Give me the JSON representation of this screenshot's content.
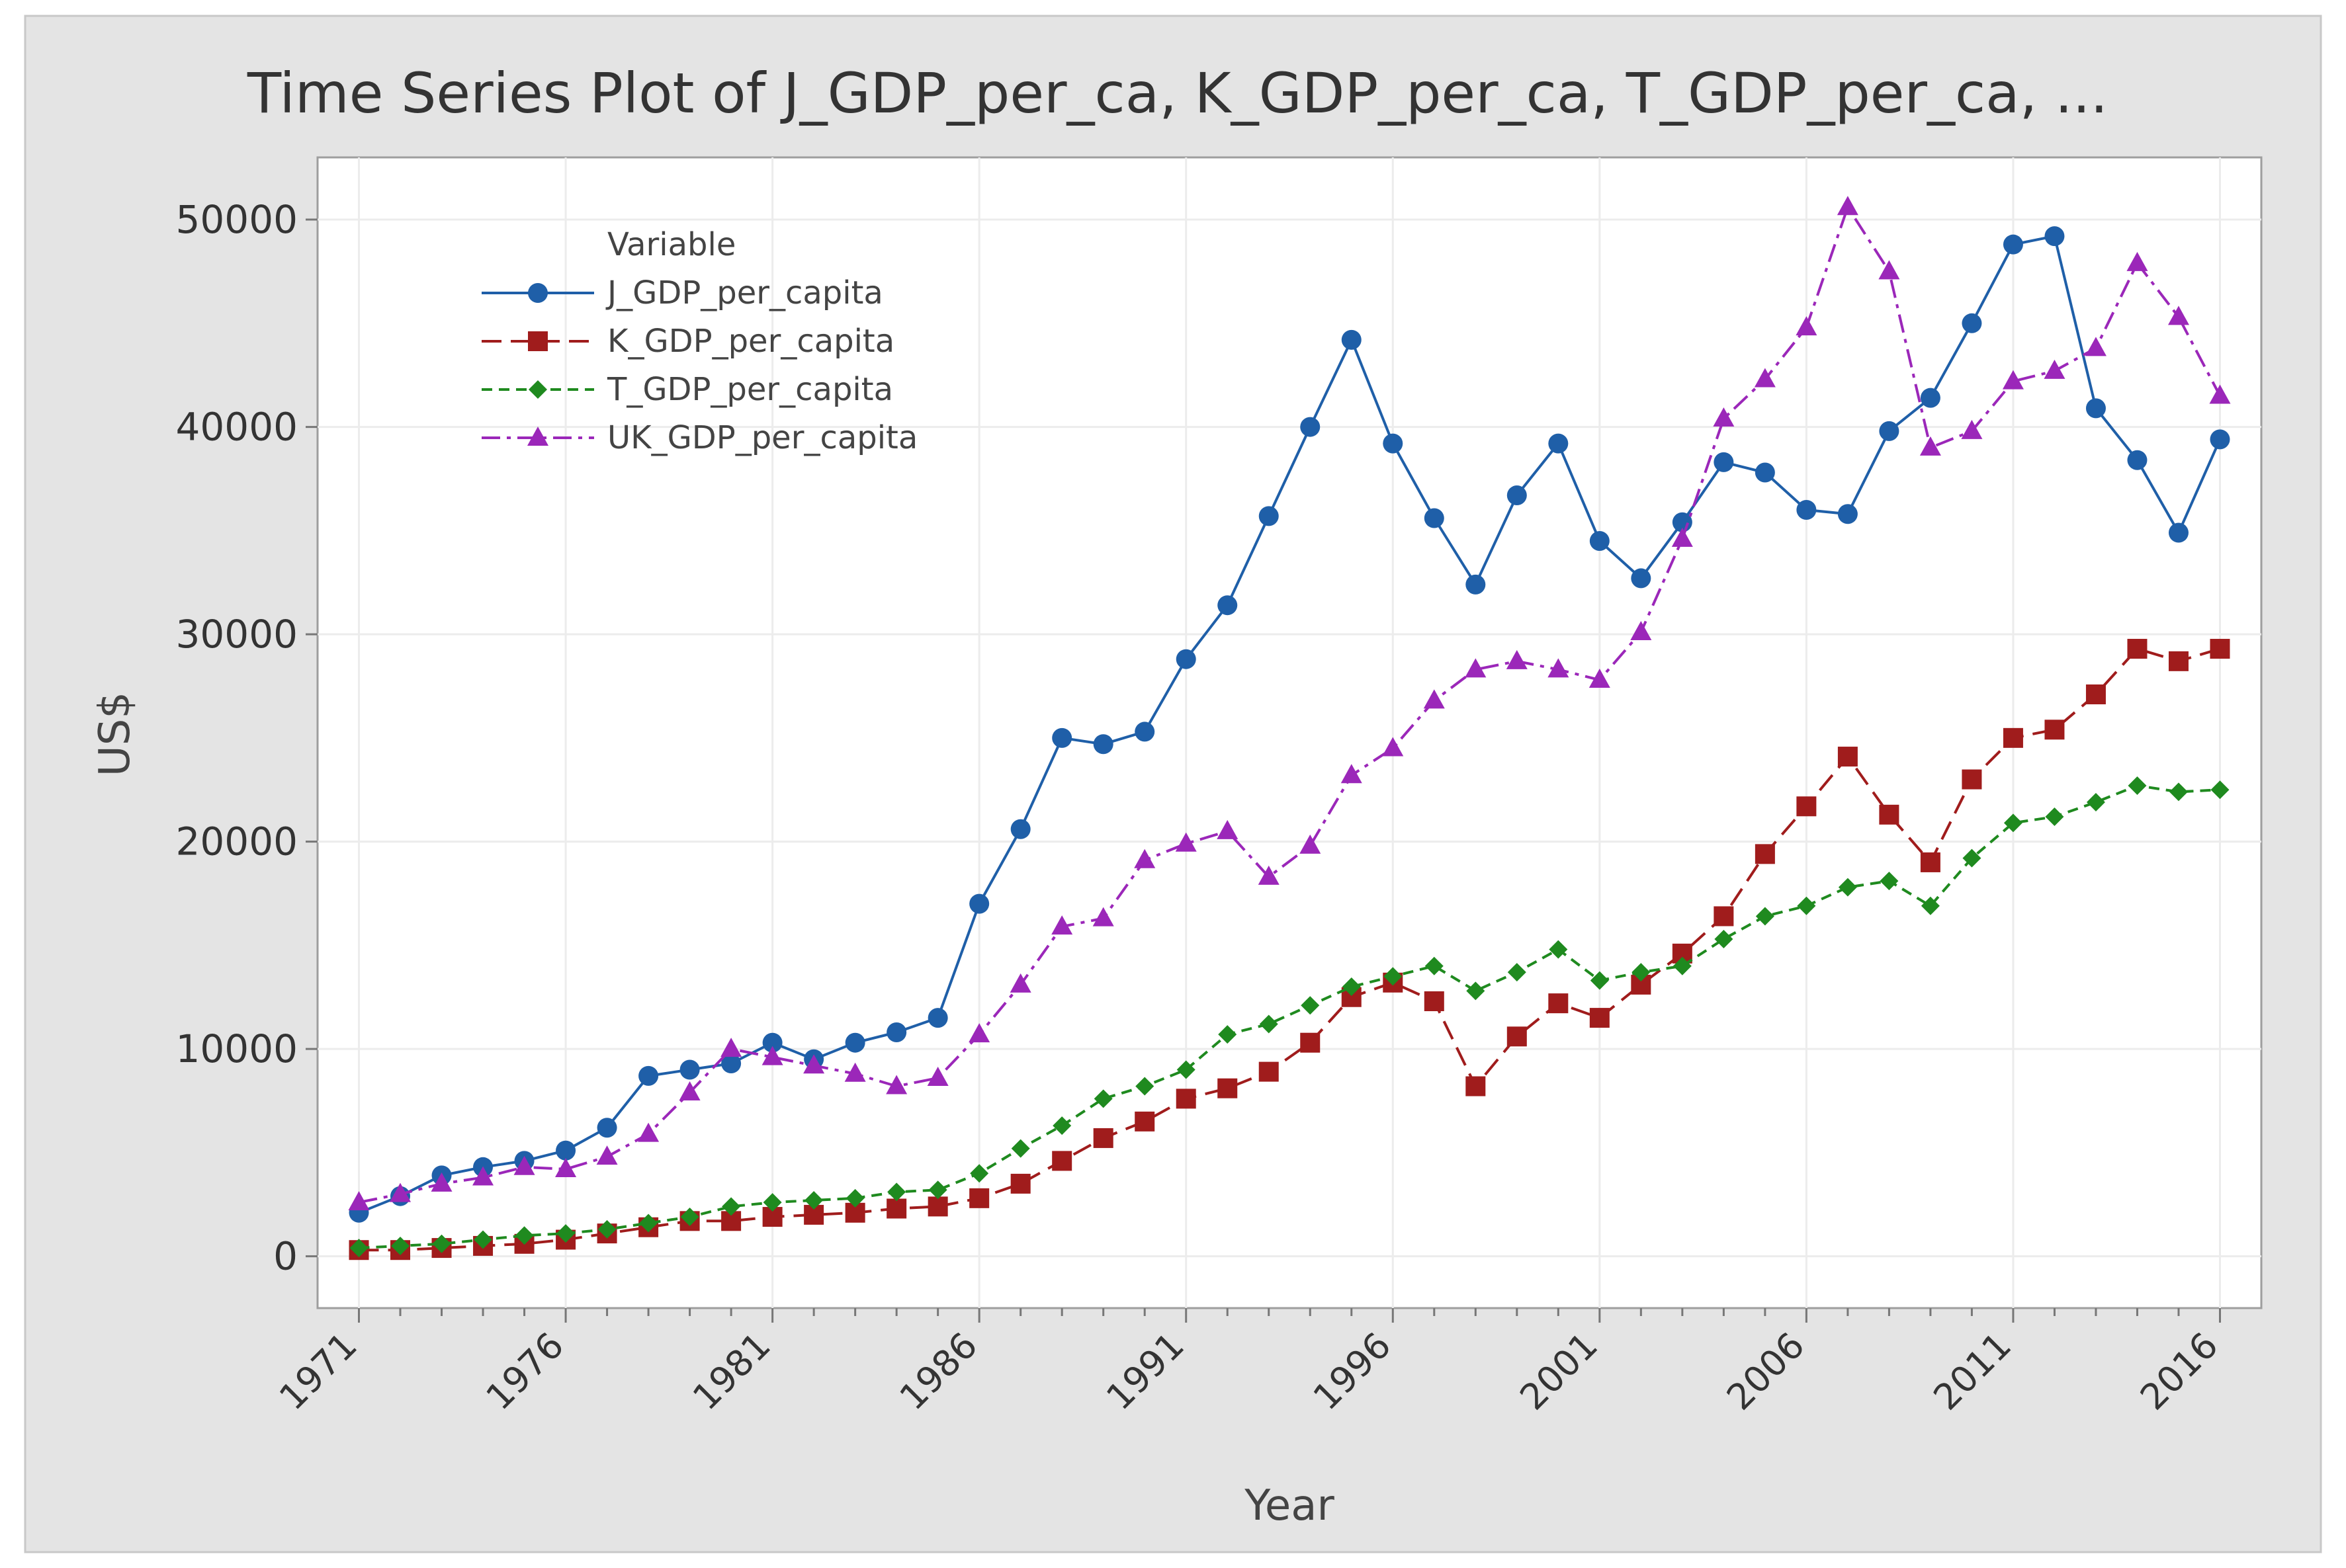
{
  "chart_data": {
    "type": "line",
    "title": "Time Series Plot of J_GDP_per_ca, K_GDP_per_ca, T_GDP_per_ca, ...",
    "xlabel": "Year",
    "ylabel": "US$",
    "xlim": [
      1970,
      2017
    ],
    "ylim": [
      -2500,
      53000
    ],
    "x_ticks": [
      1971,
      1976,
      1981,
      1986,
      1991,
      1996,
      2001,
      2006,
      2011,
      2016
    ],
    "y_ticks": [
      0,
      10000,
      20000,
      30000,
      40000,
      50000
    ],
    "grid": true,
    "legend_title": "Variable",
    "legend_position": "top-left",
    "x": [
      1971,
      1972,
      1973,
      1974,
      1975,
      1976,
      1977,
      1978,
      1979,
      1980,
      1981,
      1982,
      1983,
      1984,
      1985,
      1986,
      1987,
      1988,
      1989,
      1990,
      1991,
      1992,
      1993,
      1994,
      1995,
      1996,
      1997,
      1998,
      1999,
      2000,
      2001,
      2002,
      2003,
      2004,
      2005,
      2006,
      2007,
      2008,
      2009,
      2010,
      2011,
      2012,
      2013,
      2014,
      2015,
      2016
    ],
    "series": [
      {
        "name": "J_GDP_per_capita",
        "color": "#1f5fa8",
        "marker": "circle",
        "dash": "solid",
        "values": [
          2100,
          2900,
          3900,
          4300,
          4600,
          5100,
          6200,
          8700,
          9000,
          9300,
          10300,
          9500,
          10300,
          10800,
          11500,
          17000,
          20600,
          25000,
          24700,
          25300,
          28800,
          31400,
          35700,
          40000,
          44200,
          39200,
          35600,
          32400,
          36700,
          39200,
          34500,
          32700,
          35400,
          38300,
          37800,
          36000,
          35800,
          39800,
          41400,
          45000,
          48800,
          49200,
          40900,
          38400,
          34900,
          39400
        ]
      },
      {
        "name": "K_GDP_per_capita",
        "color": "#a01c1c",
        "marker": "square",
        "dash": "longdash",
        "values": [
          300,
          300,
          400,
          500,
          600,
          800,
          1100,
          1400,
          1700,
          1700,
          1900,
          2000,
          2100,
          2300,
          2400,
          2800,
          3500,
          4600,
          5700,
          6500,
          7600,
          8100,
          8900,
          10300,
          12500,
          13200,
          12300,
          8200,
          10600,
          12200,
          11500,
          13100,
          14600,
          16400,
          19400,
          21700,
          24100,
          21300,
          19000,
          23000,
          25000,
          25400,
          27100,
          29300,
          28700,
          29300
        ]
      },
      {
        "name": "T_GDP_per_capita",
        "color": "#1f8a1f",
        "marker": "diamond",
        "dash": "dash",
        "values": [
          400,
          500,
          600,
          800,
          1000,
          1100,
          1300,
          1600,
          1900,
          2400,
          2600,
          2700,
          2800,
          3100,
          3200,
          4000,
          5200,
          6300,
          7600,
          8200,
          9000,
          10700,
          11200,
          12100,
          13000,
          13500,
          14000,
          12800,
          13700,
          14800,
          13300,
          13700,
          14000,
          15300,
          16400,
          16900,
          17800,
          18100,
          16900,
          19200,
          20900,
          21200,
          21900,
          22700,
          22400,
          22500
        ]
      },
      {
        "name": "UK_GDP_per_capita",
        "color": "#9b27b9",
        "marker": "triangle",
        "dash": "dashdot",
        "values": [
          2600,
          3000,
          3500,
          3800,
          4300,
          4200,
          4800,
          5900,
          7900,
          10000,
          9600,
          9200,
          8800,
          8200,
          8600,
          10700,
          13100,
          15900,
          16300,
          19100,
          19900,
          20500,
          18300,
          19800,
          23200,
          24500,
          26800,
          28300,
          28700,
          28300,
          27800,
          30100,
          34600,
          40400,
          42300,
          44800,
          50600,
          47500,
          39000,
          39800,
          42200,
          42700,
          43800,
          47900,
          45300,
          41500
        ]
      }
    ]
  }
}
